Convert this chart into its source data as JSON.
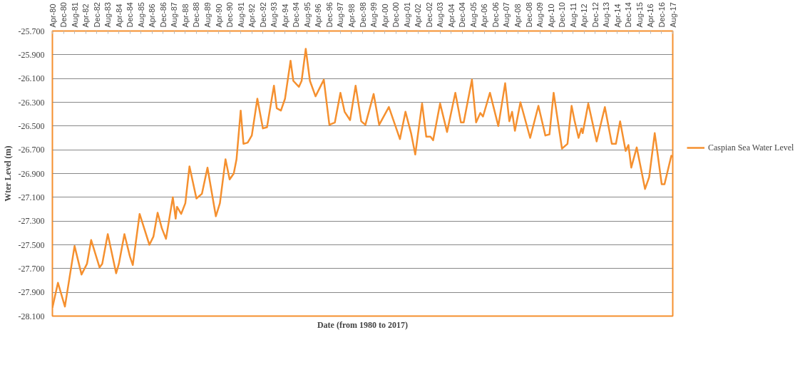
{
  "chart_data": {
    "type": "line",
    "xlabel": "Date (from 1980 to 2017)",
    "ylabel": "Wter Level (m)",
    "xlim": [
      "1980-04",
      "2017-08"
    ],
    "xticks": [
      {
        "value": "1980-04",
        "label": "Apr-80"
      },
      {
        "value": "1980-12",
        "label": "Dec-80"
      },
      {
        "value": "1981-08",
        "label": "Aug-81"
      },
      {
        "value": "1982-04",
        "label": "Apr-82"
      },
      {
        "value": "1982-12",
        "label": "Dec-82"
      },
      {
        "value": "1983-08",
        "label": "Aug-83"
      },
      {
        "value": "1984-04",
        "label": "Apr-84"
      },
      {
        "value": "1984-12",
        "label": "Dec-84"
      },
      {
        "value": "1985-08",
        "label": "Aug-85"
      },
      {
        "value": "1986-04",
        "label": "Apr-86"
      },
      {
        "value": "1986-12",
        "label": "Dec-86"
      },
      {
        "value": "1987-08",
        "label": "Aug-87"
      },
      {
        "value": "1988-04",
        "label": "Apr-88"
      },
      {
        "value": "1988-12",
        "label": "Dec-88"
      },
      {
        "value": "1989-08",
        "label": "Aug-89"
      },
      {
        "value": "1990-04",
        "label": "Apr-90"
      },
      {
        "value": "1990-12",
        "label": "Dec-90"
      },
      {
        "value": "1991-08",
        "label": "Aug-91"
      },
      {
        "value": "1992-04",
        "label": "Apr-92"
      },
      {
        "value": "1992-12",
        "label": "Dec-92"
      },
      {
        "value": "1993-08",
        "label": "Aug-93"
      },
      {
        "value": "1994-04",
        "label": "Apr-94"
      },
      {
        "value": "1994-12",
        "label": "Dec-94"
      },
      {
        "value": "1995-08",
        "label": "Aug-95"
      },
      {
        "value": "1996-04",
        "label": "Apr-96"
      },
      {
        "value": "1996-12",
        "label": "Dec-96"
      },
      {
        "value": "1997-08",
        "label": "Aug-97"
      },
      {
        "value": "1998-04",
        "label": "Apr-98"
      },
      {
        "value": "1998-12",
        "label": "Dec-98"
      },
      {
        "value": "1999-08",
        "label": "Aug-99"
      },
      {
        "value": "2000-04",
        "label": "Apr-00"
      },
      {
        "value": "2000-12",
        "label": "Dec-00"
      },
      {
        "value": "2001-08",
        "label": "Aug-01"
      },
      {
        "value": "2002-04",
        "label": "Apr-02"
      },
      {
        "value": "2002-12",
        "label": "Dec-02"
      },
      {
        "value": "2003-08",
        "label": "Aug-03"
      },
      {
        "value": "2004-04",
        "label": "Apr-04"
      },
      {
        "value": "2004-12",
        "label": "Dec-04"
      },
      {
        "value": "2005-08",
        "label": "Aug-05"
      },
      {
        "value": "2006-04",
        "label": "Apr-06"
      },
      {
        "value": "2006-12",
        "label": "Dec-06"
      },
      {
        "value": "2007-08",
        "label": "Aug-07"
      },
      {
        "value": "2008-04",
        "label": "Apr-08"
      },
      {
        "value": "2008-12",
        "label": "Dec-08"
      },
      {
        "value": "2009-08",
        "label": "Aug-09"
      },
      {
        "value": "2010-04",
        "label": "Apr-10"
      },
      {
        "value": "2010-12",
        "label": "Dec-10"
      },
      {
        "value": "2011-08",
        "label": "Aug-11"
      },
      {
        "value": "2012-04",
        "label": "Apr-12"
      },
      {
        "value": "2012-12",
        "label": "Dec-12"
      },
      {
        "value": "2013-08",
        "label": "Aug-13"
      },
      {
        "value": "2014-04",
        "label": "Apr-14"
      },
      {
        "value": "2014-12",
        "label": "Dec-14"
      },
      {
        "value": "2015-08",
        "label": "Aug-15"
      },
      {
        "value": "2016-04",
        "label": "Apr-16"
      },
      {
        "value": "2016-12",
        "label": "Dec-16"
      },
      {
        "value": "2017-08",
        "label": "Aug-17"
      }
    ],
    "ylim": [
      -28.1,
      -25.7
    ],
    "yticks": [
      {
        "value": -28.1,
        "label": "-28.100"
      },
      {
        "value": -27.9,
        "label": "-27.900"
      },
      {
        "value": -27.7,
        "label": "-27.700"
      },
      {
        "value": -27.5,
        "label": "-27.500"
      },
      {
        "value": -27.3,
        "label": "-27.300"
      },
      {
        "value": -27.1,
        "label": "-27.100"
      },
      {
        "value": -26.9,
        "label": "-26.900"
      },
      {
        "value": -26.7,
        "label": "-26.700"
      },
      {
        "value": -26.5,
        "label": "-26.500"
      },
      {
        "value": -26.3,
        "label": "-26.300"
      },
      {
        "value": -26.1,
        "label": "-26.100"
      },
      {
        "value": -25.9,
        "label": "-25.900"
      },
      {
        "value": -25.7,
        "label": "-25.700"
      }
    ],
    "grid": "y",
    "legend": "right",
    "x": [
      "1980-04",
      "1980-08",
      "1981-01",
      "1981-08",
      "1982-01",
      "1982-05",
      "1982-08",
      "1983-02",
      "1983-04",
      "1983-08",
      "1984-02",
      "1984-04",
      "1984-08",
      "1984-12",
      "1985-02",
      "1985-07",
      "1986-02",
      "1986-05",
      "1986-08",
      "1986-11",
      "1987-02",
      "1987-07",
      "1987-09",
      "1987-10",
      "1988-01",
      "1988-04",
      "1988-07",
      "1988-12",
      "1989-04",
      "1989-08",
      "1990-02",
      "1990-05",
      "1990-09",
      "1990-12",
      "1991-03",
      "1991-05",
      "1991-08",
      "1991-10",
      "1992-01",
      "1992-04",
      "1992-08",
      "1992-12",
      "1993-03",
      "1993-08",
      "1993-10",
      "1994-01",
      "1994-04",
      "1994-08",
      "1994-10",
      "1995-02",
      "1995-04",
      "1995-07",
      "1995-10",
      "1996-02",
      "1996-08",
      "1996-12",
      "1997-04",
      "1997-08",
      "1997-11",
      "1998-03",
      "1998-07",
      "1998-11",
      "1999-02",
      "1999-08",
      "1999-12",
      "2000-07",
      "2001-03",
      "2001-07",
      "2001-11",
      "2002-02",
      "2002-07",
      "2002-10",
      "2003-01",
      "2003-03",
      "2003-08",
      "2004-01",
      "2004-07",
      "2004-11",
      "2005-01",
      "2005-07",
      "2005-10",
      "2006-01",
      "2006-03",
      "2006-08",
      "2007-02",
      "2007-07",
      "2007-10",
      "2007-12",
      "2008-02",
      "2008-06",
      "2009-01",
      "2009-07",
      "2009-12",
      "2010-03",
      "2010-06",
      "2010-12",
      "2011-04",
      "2011-07",
      "2011-09",
      "2011-12",
      "2012-02",
      "2012-03",
      "2012-07",
      "2013-01",
      "2013-07",
      "2013-12",
      "2014-03",
      "2014-06",
      "2014-10",
      "2014-12",
      "2015-02",
      "2015-06",
      "2015-12",
      "2016-03",
      "2016-07",
      "2016-09",
      "2016-12",
      "2017-02",
      "2017-07",
      "2017-08"
    ],
    "series": [
      {
        "name": "Caspian Sea Water Level",
        "color": "#f5902f",
        "values": [
          -28.03,
          -27.82,
          -28.02,
          -27.51,
          -27.75,
          -27.66,
          -27.46,
          -27.69,
          -27.66,
          -27.41,
          -27.74,
          -27.66,
          -27.41,
          -27.6,
          -27.67,
          -27.24,
          -27.5,
          -27.43,
          -27.23,
          -27.36,
          -27.45,
          -27.1,
          -27.28,
          -27.18,
          -27.24,
          -27.15,
          -26.84,
          -27.11,
          -27.07,
          -26.85,
          -27.26,
          -27.15,
          -26.78,
          -26.95,
          -26.9,
          -26.78,
          -26.37,
          -26.65,
          -26.64,
          -26.58,
          -26.27,
          -26.52,
          -26.51,
          -26.16,
          -26.35,
          -26.37,
          -26.27,
          -25.95,
          -26.12,
          -26.17,
          -26.12,
          -25.85,
          -26.12,
          -26.25,
          -26.11,
          -26.49,
          -26.47,
          -26.22,
          -26.38,
          -26.45,
          -26.16,
          -26.46,
          -26.49,
          -26.23,
          -26.49,
          -26.34,
          -26.61,
          -26.38,
          -26.56,
          -26.74,
          -26.31,
          -26.59,
          -26.59,
          -26.62,
          -26.31,
          -26.55,
          -26.22,
          -26.47,
          -26.47,
          -26.11,
          -26.47,
          -26.39,
          -26.42,
          -26.22,
          -26.5,
          -26.14,
          -26.46,
          -26.38,
          -26.54,
          -26.3,
          -26.6,
          -26.33,
          -26.58,
          -26.57,
          -26.22,
          -26.69,
          -26.65,
          -26.33,
          -26.45,
          -26.6,
          -26.52,
          -26.56,
          -26.31,
          -26.63,
          -26.34,
          -26.65,
          -26.65,
          -26.46,
          -26.71,
          -26.66,
          -26.85,
          -26.68,
          -27.03,
          -26.93,
          -26.56,
          -26.73,
          -26.99,
          -26.99,
          -26.75,
          -26.76
        ]
      }
    ]
  }
}
